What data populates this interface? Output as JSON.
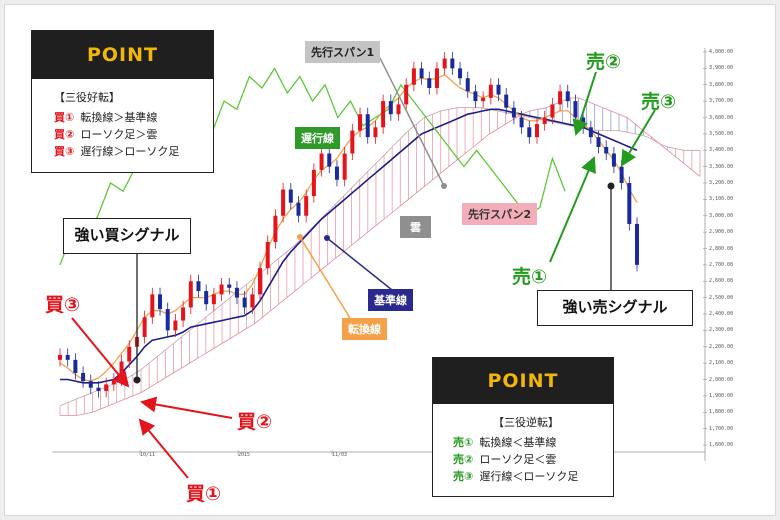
{
  "point_buy": {
    "title": "POINT",
    "subtitle": "【三役好転】",
    "items": [
      {
        "num": "買①",
        "text": "転換線＞基準線"
      },
      {
        "num": "買②",
        "text": "ローソク足＞雲"
      },
      {
        "num": "買③",
        "text": "遅行線＞ローソク足"
      }
    ]
  },
  "point_sell": {
    "title": "POINT",
    "subtitle": "【三役逆転】",
    "items": [
      {
        "num": "売①",
        "text": "転換線＜基準線"
      },
      {
        "num": "売②",
        "text": "ローソク足＜雲"
      },
      {
        "num": "売③",
        "text": "遅行線＜ローソク足"
      }
    ]
  },
  "callouts": {
    "strong_buy": "強い買シグナル",
    "strong_sell": "強い売シグナル"
  },
  "labels": {
    "chikou": "遅行線",
    "senkou1": "先行スパン1",
    "senkou2": "先行スパン2",
    "cloud": "雲",
    "kijun": "基準線",
    "tenkan": "転換線",
    "buy1": "買①",
    "buy2": "買②",
    "buy3": "買③",
    "sell1": "売①",
    "sell2": "売②",
    "sell3": "売③"
  },
  "colors": {
    "up": "#e3141b",
    "down": "#1a2a9c",
    "tenkan": "#f5a14a",
    "kijun": "#1c1c8a",
    "chikou": "#5cc93a",
    "cloud_fill": "#f7c6cf",
    "cloud_stroke": "#e88ca0",
    "cloud_fill_blue": "#c9cff2",
    "cloud_stroke_blue": "#7f8fd8",
    "senkou2_tag": "#f4aeb9",
    "kijun_tag": "#2b2a8c",
    "tenkan_tag": "#f5a14a",
    "chikou_tag": "#2e9a2a",
    "senkou1_tag": "#c4c4c4",
    "cloud_tag": "#8f8f8f"
  },
  "chart_data": {
    "type": "candlestick",
    "y_ticks": [
      "4,000.00",
      "3,900.00",
      "3,800.00",
      "3,700.00",
      "3,600.00",
      "3,500.00",
      "3,400.00",
      "3,300.00",
      "3,200.00",
      "3,100.00",
      "3,000.00",
      "2,900.00",
      "2,800.00",
      "2,700.00",
      "2,600.00",
      "2,500.00",
      "2,400.00",
      "2,300.00",
      "2,200.00",
      "2,100.00",
      "2,000.00",
      "1,900.00",
      "1,800.00",
      "1,700.00",
      "1,600.00"
    ],
    "x_ticks": [
      "10/11",
      "2015",
      "11/03"
    ],
    "ylim": [
      1600,
      4000
    ],
    "close": [
      2150,
      2120,
      2040,
      1990,
      1950,
      1930,
      1970,
      2000,
      2110,
      2200,
      2260,
      2380,
      2520,
      2430,
      2300,
      2360,
      2440,
      2600,
      2540,
      2460,
      2520,
      2580,
      2560,
      2500,
      2440,
      2520,
      2680,
      2840,
      3000,
      3160,
      3080,
      3000,
      3120,
      3280,
      3380,
      3300,
      3220,
      3380,
      3520,
      3620,
      3480,
      3540,
      3700,
      3620,
      3680,
      3800,
      3900,
      3840,
      3780,
      3900,
      3960,
      3900,
      3840,
      3760,
      3700,
      3720,
      3800,
      3740,
      3660,
      3600,
      3540,
      3480,
      3560,
      3600,
      3680,
      3760,
      3700,
      3600,
      3540,
      3480,
      3420,
      3380,
      3300,
      3200,
      2950,
      2700
    ],
    "chikou_line": [
      2700,
      2900,
      2850,
      3000,
      3200,
      3150,
      3300,
      3400,
      3350,
      3500,
      3420,
      3600,
      3500,
      3700,
      3650,
      3850,
      3780,
      3900,
      3750,
      3850,
      3700,
      3800,
      3600,
      3700,
      3550,
      3600,
      3650,
      3800,
      3700,
      3600,
      3500,
      3400,
      3300,
      3400,
      3300,
      3200,
      3100,
      3000,
      3050,
      3350,
      3150
    ],
    "tenkan_line": [
      2100,
      2070,
      2030,
      2000,
      1990,
      2010,
      2050,
      2100,
      2160,
      2220,
      2300,
      2380,
      2420,
      2420,
      2400,
      2420,
      2460,
      2500,
      2500,
      2500,
      2520,
      2540,
      2540,
      2520,
      2520,
      2580,
      2680,
      2800,
      2900,
      2980,
      3040,
      3080,
      3140,
      3220,
      3280,
      3310,
      3350,
      3420,
      3480,
      3520,
      3540,
      3580,
      3640,
      3680,
      3720,
      3780,
      3820,
      3840,
      3830,
      3840,
      3860,
      3820,
      3780,
      3760,
      3740,
      3720,
      3740,
      3720,
      3680,
      3640,
      3600,
      3580,
      3580,
      3600,
      3620,
      3640,
      3640,
      3600,
      3560,
      3520,
      3460,
      3400,
      3340,
      3260,
      3160,
      3080
    ],
    "kijun_line": [
      2000,
      2000,
      1990,
      1980,
      1980,
      1980,
      1990,
      2000,
      2040,
      2090,
      2140,
      2200,
      2240,
      2250,
      2260,
      2270,
      2290,
      2320,
      2330,
      2340,
      2350,
      2360,
      2370,
      2380,
      2390,
      2420,
      2480,
      2560,
      2640,
      2720,
      2780,
      2830,
      2880,
      2930,
      2980,
      3020,
      3060,
      3100,
      3140,
      3180,
      3220,
      3260,
      3300,
      3340,
      3380,
      3420,
      3460,
      3500,
      3520,
      3540,
      3560,
      3580,
      3600,
      3620,
      3630,
      3640,
      3650,
      3650,
      3640,
      3630,
      3620,
      3610,
      3600,
      3590,
      3580,
      3570,
      3560,
      3550,
      3540,
      3520,
      3500,
      3480,
      3460,
      3440,
      3420,
      3400
    ],
    "senkou1_line": [
      1840,
      1860,
      1880,
      1900,
      1920,
      1940,
      1960,
      1980,
      2000,
      2030,
      2060,
      2100,
      2140,
      2180,
      2220,
      2260,
      2300,
      2340,
      2380,
      2420,
      2460,
      2500,
      2540,
      2580,
      2620,
      2660,
      2700,
      2740,
      2780,
      2820,
      2870,
      2920,
      2970,
      3020,
      3070,
      3120,
      3170,
      3220,
      3270,
      3320,
      3370,
      3420,
      3470,
      3520,
      3560,
      3600,
      3620,
      3640,
      3650,
      3660,
      3660,
      3660,
      3660,
      3650,
      3640,
      3630,
      3620,
      3610,
      3600,
      3590,
      3580,
      3570,
      3560,
      3550,
      3540,
      3530,
      3520,
      3520,
      3520,
      3520,
      3510,
      3500,
      3490,
      3470,
      3440,
      3420,
      3410,
      3400,
      3400,
      3400
    ],
    "senkou2_line": [
      1780,
      1780,
      1780,
      1790,
      1800,
      1820,
      1840,
      1860,
      1880,
      1900,
      1920,
      1950,
      1980,
      2010,
      2040,
      2070,
      2100,
      2130,
      2160,
      2190,
      2220,
      2250,
      2280,
      2310,
      2340,
      2380,
      2420,
      2460,
      2500,
      2540,
      2580,
      2620,
      2660,
      2700,
      2740,
      2780,
      2820,
      2860,
      2900,
      2940,
      2980,
      3020,
      3060,
      3100,
      3140,
      3180,
      3220,
      3260,
      3300,
      3340,
      3380,
      3420,
      3460,
      3500,
      3530,
      3560,
      3590,
      3620,
      3640,
      3650,
      3660,
      3680,
      3700,
      3720,
      3720,
      3700,
      3680,
      3660,
      3640,
      3620,
      3600,
      3560,
      3520,
      3480,
      3440,
      3400,
      3360,
      3320,
      3280,
      3240
    ]
  }
}
